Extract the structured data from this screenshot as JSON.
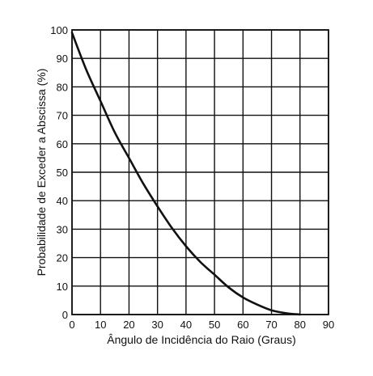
{
  "chart_data": {
    "type": "line",
    "title": "",
    "xlabel": "Ângulo de Incidência do Raio (Graus)",
    "ylabel": "Probabilidade de Exceder a Abscissa (%)",
    "xlim": [
      0,
      90
    ],
    "ylim": [
      0,
      100
    ],
    "x_ticks": [
      "0",
      "10",
      "20",
      "30",
      "40",
      "50",
      "60",
      "70",
      "80",
      "90"
    ],
    "y_ticks": [
      "0",
      "10",
      "20",
      "30",
      "40",
      "50",
      "60",
      "70",
      "80",
      "90",
      "100"
    ],
    "grid": true,
    "legend": "none",
    "series": [
      {
        "x": [
          0,
          5,
          10,
          15,
          20,
          25,
          30,
          35,
          40,
          45,
          50,
          55,
          60,
          65,
          70,
          75,
          80
        ],
        "y": [
          99,
          86,
          75,
          64,
          55,
          46,
          38,
          30.5,
          24,
          18.5,
          14,
          9.5,
          6,
          3.5,
          1.5,
          0.5,
          0
        ]
      }
    ],
    "colors": {
      "line": "#111111",
      "grid": "#111111",
      "background": "#ffffff"
    }
  }
}
